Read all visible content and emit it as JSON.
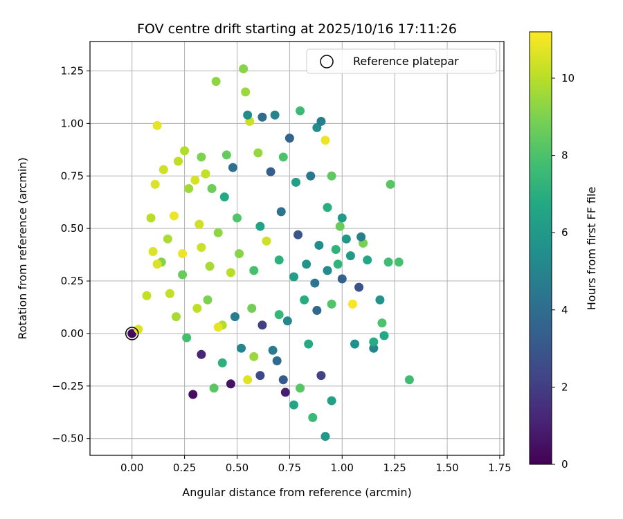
{
  "chart_data": {
    "type": "scatter",
    "title": "FOV centre drift starting at 2025/10/16 17:11:26",
    "xlabel": "Angular distance from reference (arcmin)",
    "ylabel": "Rotation from reference (arcmin)",
    "xlim": [
      -0.2,
      1.77
    ],
    "ylim": [
      -0.58,
      1.39
    ],
    "xticks": [
      0.0,
      0.25,
      0.5,
      0.75,
      1.0,
      1.25,
      1.5,
      1.75
    ],
    "xtick_labels": [
      "0.00",
      "0.25",
      "0.50",
      "0.75",
      "1.00",
      "1.25",
      "1.50",
      "1.75"
    ],
    "yticks": [
      -0.5,
      -0.25,
      0.0,
      0.25,
      0.5,
      0.75,
      1.0,
      1.25
    ],
    "ytick_labels": [
      "−0.50",
      "−0.25",
      "0.00",
      "0.25",
      "0.50",
      "0.75",
      "1.00",
      "1.25"
    ],
    "grid": true,
    "colormap": "viridis",
    "colorbar": {
      "label": "Hours from first FF file",
      "range": [
        0,
        11.2
      ],
      "ticks": [
        0,
        2,
        4,
        6,
        8,
        10
      ],
      "tick_labels": [
        "0",
        "2",
        "4",
        "6",
        "8",
        "10"
      ]
    },
    "legend": {
      "position": "upper right",
      "entries": [
        {
          "label": "Reference platepar",
          "marker": "open-circle"
        }
      ]
    },
    "reference_point": {
      "x": 0.0,
      "y": 0.0
    },
    "series": [
      {
        "marker": "filled-circle",
        "x": [
          0.0,
          0.03,
          0.07,
          0.12,
          0.11,
          0.09,
          0.15,
          0.22,
          0.25,
          0.33,
          0.4,
          0.45,
          0.53,
          0.54,
          0.56,
          0.55,
          0.62,
          0.68,
          0.75,
          0.8,
          0.88,
          0.9,
          0.92,
          0.95,
          1.0,
          1.05,
          1.1,
          1.15,
          1.2,
          1.23,
          1.27,
          1.32,
          1.18,
          1.12,
          1.08,
          1.02,
          0.98,
          0.85,
          0.78,
          0.72,
          0.66,
          0.6,
          0.48,
          0.44,
          0.38,
          0.35,
          0.3,
          0.27,
          0.2,
          0.17,
          0.1,
          0.14,
          0.24,
          0.33,
          0.37,
          0.47,
          0.51,
          0.58,
          0.64,
          0.7,
          0.77,
          0.83,
          0.87,
          0.93,
          0.95,
          0.88,
          0.82,
          0.74,
          0.7,
          0.62,
          0.57,
          0.49,
          0.43,
          0.41,
          0.36,
          0.31,
          0.26,
          0.33,
          0.43,
          0.55,
          0.58,
          0.69,
          0.72,
          0.77,
          0.8,
          0.86,
          0.92,
          0.95,
          1.06,
          1.15,
          1.19,
          1.22,
          1.0,
          0.9,
          0.84,
          0.73,
          0.67,
          0.61,
          0.52,
          0.47,
          0.39,
          0.29,
          0.21,
          0.18,
          0.12,
          0.24,
          0.32,
          0.41,
          0.5,
          0.61,
          0.71,
          0.79,
          0.89,
          0.97,
          1.04,
          1.09,
          0.99,
          0.93
        ],
        "y": [
          0.0,
          0.02,
          0.18,
          0.99,
          0.71,
          0.55,
          0.78,
          0.82,
          0.87,
          0.84,
          1.2,
          0.85,
          1.26,
          1.15,
          1.01,
          1.04,
          1.03,
          1.04,
          0.93,
          1.06,
          0.98,
          1.01,
          0.92,
          0.75,
          0.55,
          0.14,
          0.43,
          -0.07,
          -0.01,
          0.71,
          0.34,
          -0.22,
          0.16,
          0.35,
          0.22,
          0.45,
          0.33,
          0.75,
          0.72,
          0.84,
          0.77,
          0.86,
          0.79,
          0.65,
          0.69,
          0.76,
          0.73,
          0.69,
          0.56,
          0.45,
          0.39,
          0.34,
          0.28,
          0.41,
          0.32,
          0.29,
          0.38,
          0.3,
          0.44,
          0.35,
          0.27,
          0.33,
          0.24,
          0.3,
          0.14,
          0.11,
          0.16,
          0.06,
          0.09,
          0.04,
          0.12,
          0.08,
          0.04,
          0.03,
          0.16,
          0.12,
          -0.02,
          -0.1,
          -0.14,
          -0.22,
          -0.11,
          -0.13,
          -0.22,
          -0.34,
          -0.26,
          -0.4,
          -0.49,
          -0.32,
          -0.05,
          -0.04,
          0.05,
          0.34,
          0.26,
          -0.2,
          -0.05,
          -0.28,
          -0.08,
          -0.2,
          -0.07,
          -0.24,
          -0.26,
          -0.29,
          0.08,
          0.19,
          0.33,
          0.38,
          0.52,
          0.48,
          0.55,
          0.51,
          0.58,
          0.47,
          0.42,
          0.4,
          0.37,
          0.46,
          0.51,
          0.6
        ],
        "color_values": [
          0.3,
          10.7,
          10.2,
          10.8,
          10.6,
          10.0,
          10.4,
          10.1,
          9.9,
          9.0,
          9.3,
          8.5,
          9.2,
          9.5,
          10.3,
          5.4,
          3.9,
          5.0,
          3.6,
          7.6,
          5.5,
          4.8,
          10.9,
          8.4,
          6.1,
          11.1,
          8.9,
          5.0,
          6.7,
          8.3,
          7.9,
          7.7,
          5.8,
          6.6,
          2.8,
          5.9,
          7.3,
          4.5,
          6.3,
          8.0,
          3.3,
          9.4,
          4.1,
          6.8,
          8.7,
          10.2,
          10.5,
          9.6,
          10.9,
          9.8,
          10.6,
          9.1,
          8.6,
          10.3,
          9.7,
          10.0,
          9.2,
          7.9,
          10.4,
          7.1,
          6.2,
          5.7,
          4.4,
          5.3,
          8.1,
          3.8,
          6.9,
          5.2,
          7.4,
          2.1,
          8.8,
          4.7,
          9.9,
          10.8,
          9.0,
          10.1,
          7.8,
          1.2,
          7.1,
          10.7,
          9.5,
          4.0,
          3.1,
          6.6,
          8.2,
          7.5,
          6.0,
          6.4,
          5.6,
          6.9,
          8.0,
          7.7,
          3.5,
          2.2,
          6.8,
          0.9,
          4.6,
          2.5,
          5.1,
          0.6,
          8.3,
          0.4,
          9.7,
          10.2,
          10.6,
          10.9,
          10.4,
          9.3,
          8.1,
          6.5,
          4.2,
          3.0,
          5.4,
          7.2,
          6.1,
          4.9,
          8.6,
          7.0
        ]
      }
    ]
  }
}
